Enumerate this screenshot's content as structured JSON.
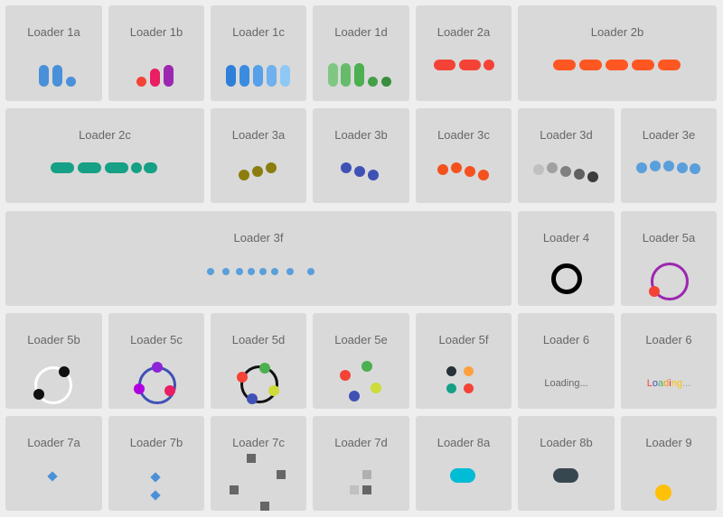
{
  "loaders": {
    "l1a": "Loader 1a",
    "l1b": "Loader 1b",
    "l1c": "Loader 1c",
    "l1d": "Loader 1d",
    "l2a": "Loader 2a",
    "l2b": "Loader 2b",
    "l2c": "Loader 2c",
    "l3a": "Loader 3a",
    "l3b": "Loader 3b",
    "l3c": "Loader 3c",
    "l3d": "Loader 3d",
    "l3e": "Loader 3e",
    "l3f": "Loader 3f",
    "l4": "Loader 4",
    "l5a": "Loader 5a",
    "l5b": "Loader 5b",
    "l5c": "Loader 5c",
    "l5d": "Loader 5d",
    "l5e": "Loader 5e",
    "l5f": "Loader 5f",
    "l6a": "Loader 6",
    "l6b": "Loader 6",
    "l7a": "Loader 7a",
    "l7b": "Loader 7b",
    "l7c": "Loader 7c",
    "l7d": "Loader 7d",
    "l8a": "Loader 8a",
    "l8b": "Loader 8b",
    "l9": "Loader 9"
  },
  "loading_text": "Loading...",
  "loading_rainbow": [
    "L",
    "o",
    "a",
    "d",
    "i",
    "n",
    "g",
    "."
  ],
  "colors": {
    "blue": "#4a90d9",
    "red": "#f44336",
    "orange": "#ff5722",
    "teal": "#16a085",
    "green": "#4caf50",
    "olive": "#8b7d0e",
    "indigo": "#3f51b5",
    "purple": "#9c27b0",
    "violet": "#8e24d8",
    "lime": "#cddc39",
    "cyan": "#00bcd4",
    "slate": "#37474f",
    "gold": "#ffc107",
    "grey": "#666666"
  }
}
